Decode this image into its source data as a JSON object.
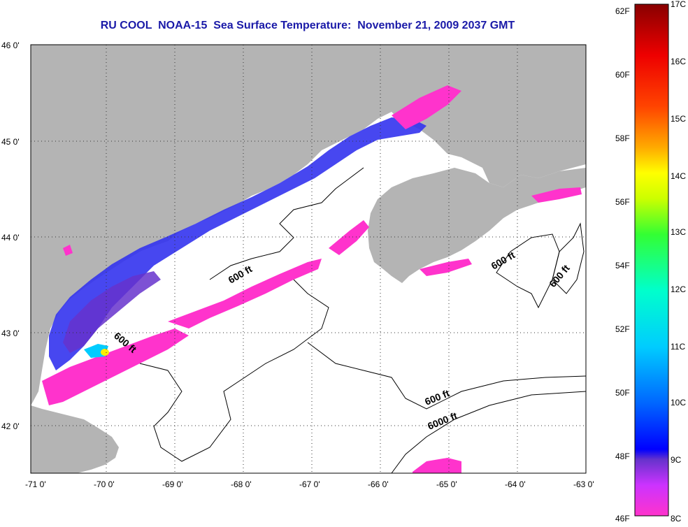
{
  "title": "RU COOL  NOAA-15  Sea Surface Temperature:  November 21, 2009 2037 GMT",
  "map": {
    "lon_labels": [
      "-71 0'",
      "-70 0'",
      "-69 0'",
      "-68 0'",
      "-67 0'",
      "-66 0'",
      "-65 0'",
      "-64 0'",
      "-63 0'"
    ],
    "lat_labels": [
      "46 0'",
      "45 0'",
      "44 0'",
      "43 0'",
      "42 0'"
    ],
    "contour_labels": [
      "600 ft",
      "600 ft",
      "600 ft",
      "600 ft",
      "600 ft",
      "6000 ft"
    ],
    "colors": {
      "land": "#b4b4b4",
      "sea": "#ffffff",
      "grid": "#333333"
    }
  },
  "colorbar": {
    "f_labels": [
      "62F",
      "60F",
      "58F",
      "56F",
      "54F",
      "52F",
      "50F",
      "48F",
      "46F"
    ],
    "c_labels": [
      "17C",
      "16C",
      "15C",
      "14C",
      "13C",
      "12C",
      "11C",
      "10C",
      "9C",
      "8C"
    ],
    "colors": [
      "#ff33cc",
      "#cc33ff",
      "#6633cc",
      "#0000ff",
      "#0066ff",
      "#00aaff",
      "#00ffff",
      "#00ff99",
      "#33ff33",
      "#ccff00",
      "#ffff00",
      "#ffaa00",
      "#ff5500",
      "#ff0000",
      "#cc0000",
      "#880000"
    ]
  }
}
